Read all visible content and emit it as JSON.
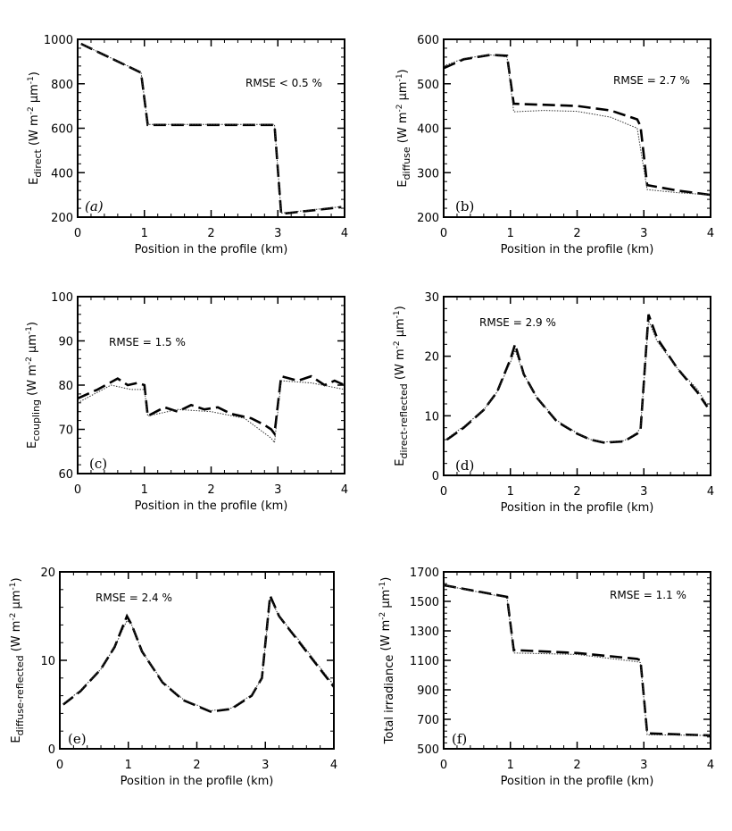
{
  "chart_data": [
    {
      "panel": "(a)",
      "panel_italic": true,
      "type": "line",
      "xlabel": "Position in the profile (km)",
      "ylabel": {
        "base": "E",
        "sub": "direct",
        "unit": " (W m",
        "exp1": "-2",
        "unit2": " μm",
        "exp2": "-1",
        "close": ")"
      },
      "xlim": [
        0,
        4
      ],
      "ylim": [
        200,
        1000
      ],
      "xticks": [
        0,
        1,
        2,
        3,
        4
      ],
      "yticks": [
        200,
        400,
        600,
        800,
        1000
      ],
      "annotation": "RMSE < 0.5 %",
      "series": [
        {
          "style": "dashed",
          "x": [
            0.05,
            0.95,
            1.05,
            2.95,
            3.05,
            3.95
          ],
          "y": [
            980,
            850,
            615,
            615,
            215,
            245
          ]
        },
        {
          "style": "dotted",
          "x": [
            0.05,
            0.95,
            1.05,
            2.95,
            3.05,
            3.95
          ],
          "y": [
            980,
            852,
            617,
            617,
            218,
            247
          ]
        }
      ]
    },
    {
      "panel": "(b)",
      "panel_italic": false,
      "type": "line",
      "xlabel": "Position in the profile (km)",
      "ylabel": {
        "base": "E",
        "sub": "diffuse",
        "unit": " (W m",
        "exp1": "-2",
        "unit2": " μm",
        "exp2": "-1",
        "close": ")"
      },
      "xlim": [
        0,
        4
      ],
      "ylim": [
        200,
        600
      ],
      "xticks": [
        0,
        1,
        2,
        3,
        4
      ],
      "yticks": [
        200,
        300,
        400,
        500,
        600
      ],
      "annotation": "RMSE = 2.7 %",
      "series": [
        {
          "style": "dashed",
          "x": [
            0,
            0.3,
            0.7,
            0.95,
            1.05,
            2,
            2.5,
            2.9,
            2.95,
            3.05,
            3.5,
            4
          ],
          "y": [
            535,
            555,
            565,
            563,
            455,
            450,
            440,
            420,
            405,
            272,
            260,
            250
          ]
        },
        {
          "style": "dotted",
          "x": [
            0,
            0.3,
            0.7,
            0.95,
            1.05,
            1.5,
            2,
            2.5,
            2.9,
            3.05,
            3.5,
            4
          ],
          "y": [
            540,
            557,
            565,
            560,
            437,
            440,
            438,
            425,
            400,
            262,
            255,
            250
          ]
        }
      ]
    },
    {
      "panel": "(c)",
      "panel_italic": false,
      "type": "line",
      "xlabel": "Position in the profile (km)",
      "ylabel": {
        "base": "E",
        "sub": "coupling",
        "unit": " (W m",
        "exp1": "-2",
        "unit2": " μm",
        "exp2": "-1",
        "close": ")"
      },
      "xlim": [
        0,
        4
      ],
      "ylim": [
        60,
        100
      ],
      "xticks": [
        0,
        1,
        2,
        3,
        4
      ],
      "yticks": [
        60,
        70,
        80,
        90,
        100
      ],
      "annotation": "RMSE = 1.5 %",
      "series": [
        {
          "style": "dashed",
          "x": [
            0,
            0.3,
            0.6,
            0.75,
            0.9,
            1.0,
            1.05,
            1.3,
            1.5,
            1.7,
            1.9,
            2.1,
            2.3,
            2.6,
            2.8,
            2.9,
            2.95,
            3.05,
            3.3,
            3.5,
            3.7,
            3.85,
            4
          ],
          "y": [
            77,
            79,
            81.5,
            80,
            80.5,
            80,
            73,
            75,
            74,
            75.5,
            74.5,
            75,
            73.5,
            72.5,
            71,
            70,
            69,
            82,
            81,
            82,
            80,
            81,
            80
          ]
        },
        {
          "style": "dotted",
          "x": [
            0,
            0.5,
            0.8,
            1.0,
            1.05,
            1.5,
            2,
            2.5,
            2.9,
            2.95,
            3.05,
            3.5,
            4
          ],
          "y": [
            76,
            80,
            79,
            79,
            73,
            74.5,
            74,
            72.5,
            68,
            67,
            81,
            80.5,
            79
          ]
        }
      ]
    },
    {
      "panel": "(d)",
      "panel_italic": false,
      "type": "line",
      "xlabel": "Position in the profile (km)",
      "ylabel": {
        "base": "E",
        "sub": "direct-reflected",
        "unit": " (W m",
        "exp1": "-2",
        "unit2": " μm",
        "exp2": "-1",
        "close": ")"
      },
      "xlim": [
        0,
        4
      ],
      "ylim": [
        0,
        30
      ],
      "xticks": [
        0,
        1,
        2,
        3,
        4
      ],
      "yticks": [
        0,
        10,
        20,
        30
      ],
      "annotation": "RMSE = 2.9 %",
      "series": [
        {
          "style": "dashed",
          "x": [
            0.05,
            0.3,
            0.6,
            0.8,
            1.0,
            1.07,
            1.2,
            1.4,
            1.7,
            2.0,
            2.2,
            2.4,
            2.7,
            2.9,
            2.95,
            3.07,
            3.2,
            3.5,
            3.8,
            3.95
          ],
          "y": [
            6,
            8,
            11,
            14,
            19.5,
            22,
            17,
            13,
            9,
            7,
            6,
            5.5,
            5.7,
            7,
            7.5,
            27,
            23,
            18,
            14,
            11.5
          ]
        },
        {
          "style": "dotted",
          "x": [
            0.05,
            0.3,
            0.6,
            0.8,
            1.0,
            1.07,
            1.2,
            1.4,
            1.7,
            2.0,
            2.2,
            2.4,
            2.7,
            2.9,
            2.95,
            3.07,
            3.2,
            3.5,
            3.8,
            3.95
          ],
          "y": [
            6.2,
            8.2,
            11,
            14,
            19,
            21,
            17,
            13,
            9.2,
            7.1,
            6,
            5.6,
            5.8,
            7.2,
            8,
            26,
            22.5,
            18,
            14.5,
            11.8
          ]
        }
      ]
    },
    {
      "panel": "(e)",
      "panel_italic": false,
      "type": "line",
      "xlabel": "Position in the profile (km)",
      "ylabel": {
        "base": "E",
        "sub": "diffuse-reflected",
        "unit": " (W m",
        "exp1": "-2",
        "unit2": " μm",
        "exp2": "-1",
        "close": ")"
      },
      "xlim": [
        0,
        4
      ],
      "ylim": [
        0,
        20
      ],
      "xticks": [
        0,
        1,
        2,
        3,
        4
      ],
      "yticks": [
        0,
        10,
        20
      ],
      "annotation": "RMSE = 2.4 %",
      "series": [
        {
          "style": "dashed",
          "x": [
            0.05,
            0.3,
            0.6,
            0.8,
            0.98,
            1.05,
            1.2,
            1.5,
            1.8,
            2.2,
            2.5,
            2.8,
            2.95,
            3.07,
            3.2,
            3.5,
            3.8,
            4
          ],
          "y": [
            5,
            6.5,
            9,
            11.5,
            15,
            14,
            11,
            7.5,
            5.5,
            4.2,
            4.5,
            6,
            8,
            17.3,
            15,
            12,
            9,
            7
          ]
        },
        {
          "style": "dotted",
          "x": [
            0.05,
            0.3,
            0.6,
            0.8,
            0.98,
            1.05,
            1.2,
            1.5,
            1.8,
            2.2,
            2.5,
            2.8,
            2.95,
            3.07,
            3.2,
            3.5,
            3.8,
            4
          ],
          "y": [
            5.1,
            6.6,
            9,
            11.5,
            14.5,
            14,
            11,
            7.6,
            5.6,
            4.3,
            4.6,
            6.1,
            8,
            17,
            15,
            12.2,
            9.2,
            7.2
          ]
        }
      ]
    },
    {
      "panel": "(f)",
      "panel_italic": false,
      "type": "line",
      "xlabel": "Position in the profile (km)",
      "ylabel": {
        "base": "Total irradiance",
        "sub": "",
        "unit": " (W m",
        "exp1": "-2",
        "unit2": " μm",
        "exp2": "-1",
        "close": ")"
      },
      "xlim": [
        0,
        4
      ],
      "ylim": [
        500,
        1700
      ],
      "xticks": [
        0,
        1,
        2,
        3,
        4
      ],
      "yticks": [
        500,
        700,
        900,
        1100,
        1300,
        1500,
        1700
      ],
      "annotation": "RMSE = 1.1 %",
      "series": [
        {
          "style": "dashed",
          "x": [
            0,
            0.95,
            1.05,
            2,
            2.9,
            2.95,
            3.05,
            4
          ],
          "y": [
            1610,
            1530,
            1170,
            1150,
            1110,
            1100,
            605,
            590
          ]
        },
        {
          "style": "dotted",
          "x": [
            0,
            0.95,
            1.05,
            2,
            2.9,
            2.95,
            3.05,
            4
          ],
          "y": [
            1610,
            1525,
            1150,
            1140,
            1090,
            1085,
            595,
            590
          ]
        }
      ]
    }
  ]
}
